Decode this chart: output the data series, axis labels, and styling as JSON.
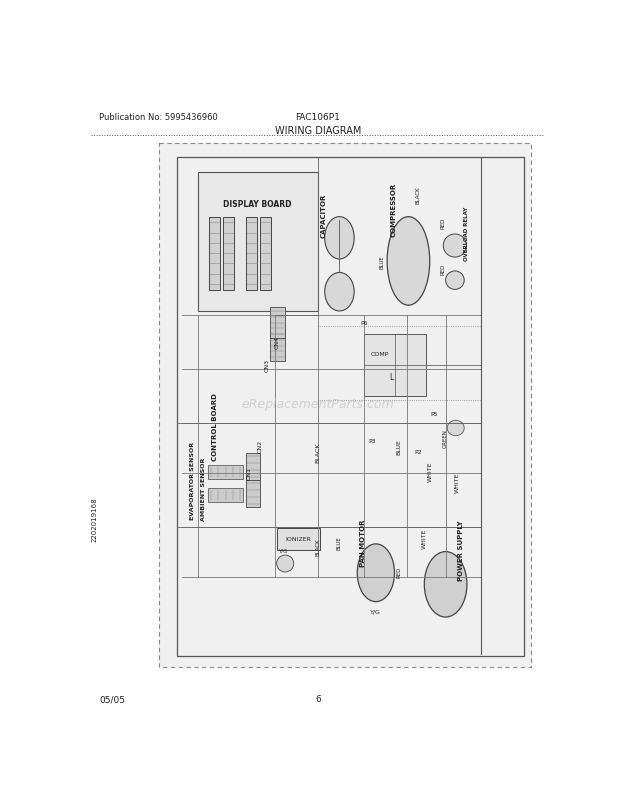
{
  "page_width": 6.2,
  "page_height": 8.03,
  "dpi": 100,
  "bg_color": "#ffffff",
  "header_pub": "Publication No: 5995436960",
  "header_model": "FAC106P1",
  "header_title": "WIRING DIAGRAM",
  "footer_date": "05/05",
  "footer_page": "6",
  "watermark": "eReplacementParts.com",
  "sidebar_text": "2202019168",
  "text_color": "#222222",
  "line_color": "#555555",
  "diagram_bg": "#e8e8e8",
  "scan_gray": "#c8c8c8"
}
